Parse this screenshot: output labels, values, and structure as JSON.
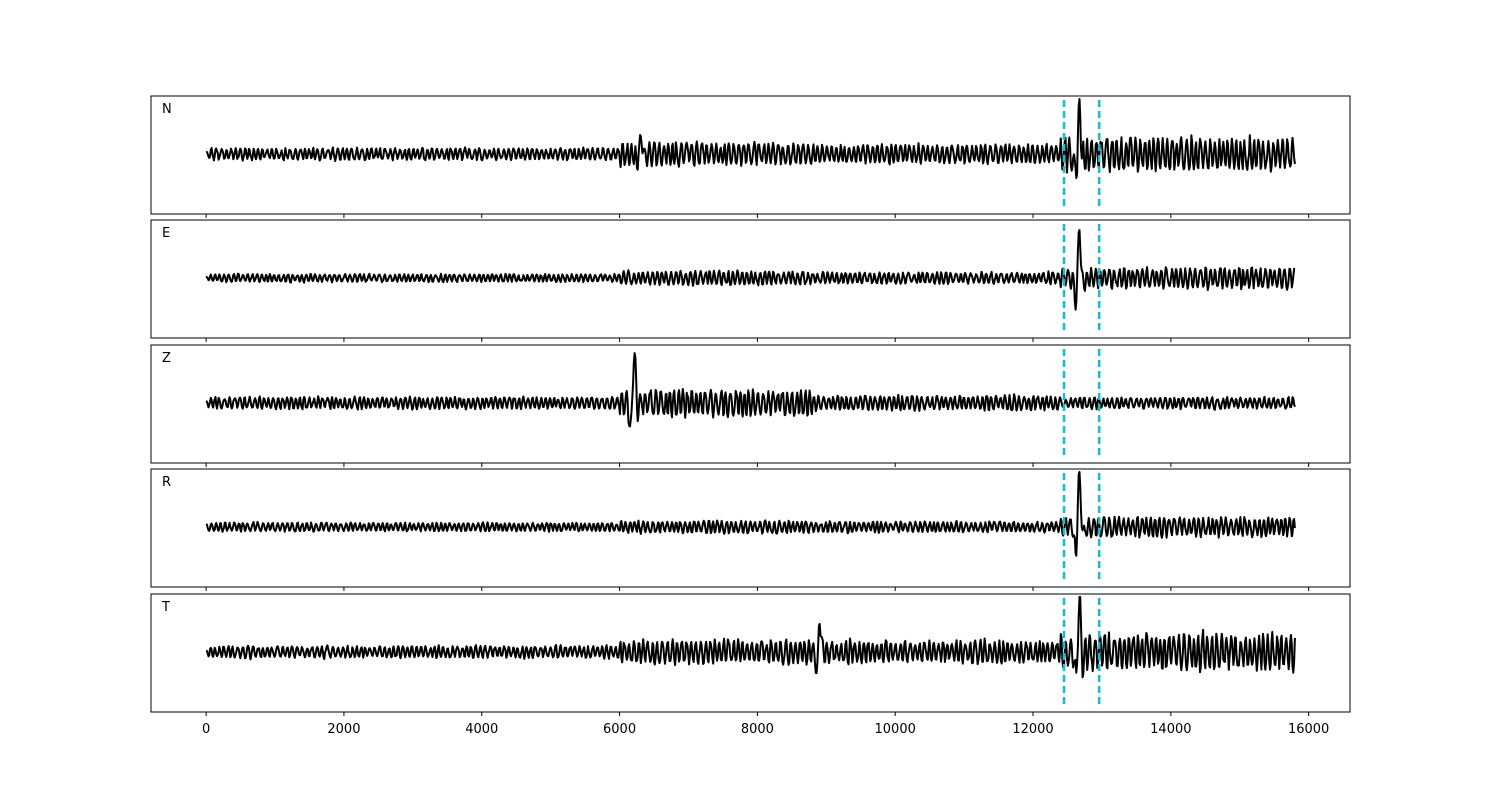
{
  "chart_data": {
    "type": "line",
    "xlim": [
      -800,
      16600
    ],
    "x_ticks": [
      0,
      2000,
      4000,
      6000,
      8000,
      10000,
      12000,
      14000,
      16000
    ],
    "x_tick_labels": [
      "0",
      "2000",
      "4000",
      "6000",
      "8000",
      "10000",
      "12000",
      "14000",
      "16000"
    ],
    "grid": false,
    "sample_range": [
      0,
      15800
    ],
    "markers": [
      12450,
      12960
    ],
    "marker_color": "#17becf",
    "trace_color": "#000000",
    "panels": [
      {
        "label": "N",
        "segments": [
          {
            "x": [
              0,
              6000
            ],
            "amp": 0.14
          },
          {
            "x": [
              6000,
              8800
            ],
            "amp": 0.26
          },
          {
            "x": [
              8800,
              12400
            ],
            "amp": 0.22
          },
          {
            "x": [
              12400,
              15800
            ],
            "amp": 0.38
          }
        ],
        "events": [
          {
            "x": 12660,
            "amp": 0.92
          },
          {
            "x": 6300,
            "amp": 0.3
          }
        ]
      },
      {
        "label": "E",
        "segments": [
          {
            "x": [
              0,
              6000
            ],
            "amp": 0.09
          },
          {
            "x": [
              6000,
              8800
            ],
            "amp": 0.16
          },
          {
            "x": [
              8800,
              12400
            ],
            "amp": 0.13
          },
          {
            "x": [
              12400,
              15800
            ],
            "amp": 0.24
          }
        ],
        "events": [
          {
            "x": 12660,
            "amp": 0.9
          }
        ]
      },
      {
        "label": "Z",
        "segments": [
          {
            "x": [
              0,
              6000
            ],
            "amp": 0.14
          },
          {
            "x": [
              6000,
              8800
            ],
            "amp": 0.3
          },
          {
            "x": [
              8800,
              12400
            ],
            "amp": 0.17
          },
          {
            "x": [
              12400,
              15800
            ],
            "amp": 0.13
          }
        ],
        "events": [
          {
            "x": 6200,
            "amp": 1.0
          }
        ]
      },
      {
        "label": "R",
        "segments": [
          {
            "x": [
              0,
              6000
            ],
            "amp": 0.1
          },
          {
            "x": [
              6000,
              8800
            ],
            "amp": 0.14
          },
          {
            "x": [
              8800,
              12400
            ],
            "amp": 0.12
          },
          {
            "x": [
              12400,
              15800
            ],
            "amp": 0.22
          }
        ],
        "events": [
          {
            "x": 12660,
            "amp": 1.0
          }
        ]
      },
      {
        "label": "T",
        "segments": [
          {
            "x": [
              0,
              6000
            ],
            "amp": 0.14
          },
          {
            "x": [
              6000,
              8800
            ],
            "amp": 0.27
          },
          {
            "x": [
              8800,
              12400
            ],
            "amp": 0.25
          },
          {
            "x": [
              12400,
              15800
            ],
            "amp": 0.42
          }
        ],
        "events": [
          {
            "x": 12660,
            "amp": 1.0
          },
          {
            "x": 8900,
            "amp": 0.55
          }
        ]
      }
    ]
  }
}
